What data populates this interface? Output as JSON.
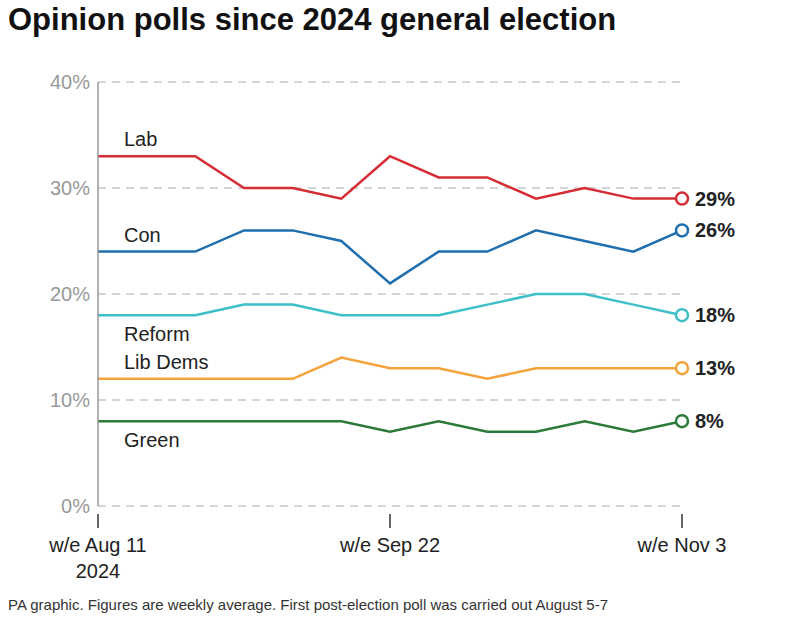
{
  "chart_data": {
    "type": "line",
    "title": "Opinion polls since 2024 general election",
    "caption": "PA graphic. Figures are weekly average. First post-election poll was carried out August 5-7",
    "categories": [
      "w/e Aug 11\n2024",
      null,
      null,
      null,
      null,
      null,
      "w/e Sep 22",
      null,
      null,
      null,
      null,
      null,
      "w/e Nov 3"
    ],
    "series": [
      {
        "name": "Lab",
        "color": "#d62c35",
        "values": [
          33,
          33,
          33,
          30,
          30,
          29,
          33,
          31,
          31,
          29,
          30,
          29,
          29
        ],
        "value_labels": [
          null,
          null,
          null,
          null,
          null,
          null,
          null,
          null,
          null,
          null,
          null,
          null,
          "29%"
        ]
      },
      {
        "name": "Con",
        "color": "#1f6fae",
        "values": [
          24,
          24,
          24,
          26,
          26,
          25,
          21,
          24,
          24,
          26,
          25,
          24,
          26
        ],
        "value_labels": [
          null,
          null,
          null,
          null,
          null,
          null,
          null,
          null,
          null,
          null,
          null,
          null,
          "26%"
        ]
      },
      {
        "name": "Reform",
        "color": "#3dbfc8",
        "values": [
          18,
          18,
          18,
          19,
          19,
          18,
          18,
          18,
          19,
          20,
          20,
          19,
          18
        ],
        "value_labels": [
          null,
          null,
          null,
          null,
          null,
          null,
          null,
          null,
          null,
          null,
          null,
          null,
          "18%"
        ]
      },
      {
        "name": "Lib Dems",
        "color": "#f5a23c",
        "values": [
          12,
          12,
          12,
          12,
          12,
          14,
          13,
          13,
          12,
          13,
          13,
          13,
          13
        ],
        "value_labels": [
          null,
          null,
          null,
          null,
          null,
          null,
          null,
          null,
          null,
          null,
          null,
          null,
          "13%"
        ]
      },
      {
        "name": "Green",
        "color": "#2b7a3a",
        "values": [
          8,
          8,
          8,
          8,
          8,
          8,
          7,
          8,
          7,
          7,
          8,
          7,
          8
        ],
        "value_labels": [
          null,
          null,
          null,
          null,
          null,
          null,
          null,
          null,
          null,
          null,
          null,
          null,
          "8%"
        ]
      }
    ],
    "ylim": [
      0,
      40
    ],
    "yticks": [
      {
        "value": 0,
        "label": "0%"
      },
      {
        "value": 10,
        "label": "10%"
      },
      {
        "value": 20,
        "label": "20%"
      },
      {
        "value": 30,
        "label": "30%"
      },
      {
        "value": 40,
        "label": "40%"
      }
    ],
    "grid": true
  }
}
